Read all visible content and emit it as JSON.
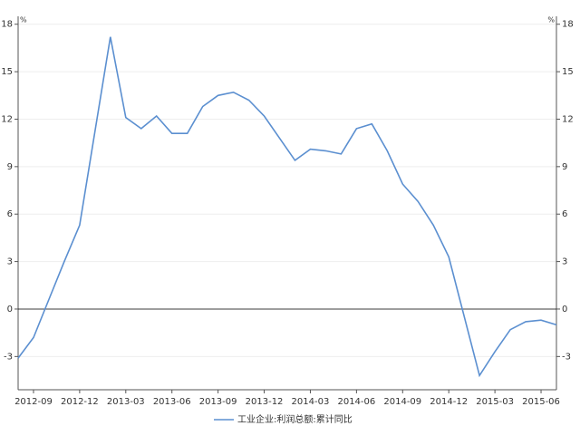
{
  "chart_data": {
    "type": "line",
    "x": [
      "2012-08",
      "2012-09",
      "2012-10",
      "2012-11",
      "2012-12",
      "2013-02",
      "2013-03",
      "2013-04",
      "2013-05",
      "2013-06",
      "2013-07",
      "2013-08",
      "2013-09",
      "2013-10",
      "2013-11",
      "2013-12",
      "2014-02",
      "2014-03",
      "2014-04",
      "2014-05",
      "2014-06",
      "2014-07",
      "2014-08",
      "2014-09",
      "2014-10",
      "2014-11",
      "2014-12",
      "2015-02",
      "2015-03",
      "2015-04",
      "2015-05",
      "2015-06",
      "2015-07"
    ],
    "series": [
      {
        "name": "工业企业:利润总额:累计同比",
        "color": "#5b8fd0",
        "values": [
          -3.1,
          -1.8,
          0.6,
          3.0,
          5.3,
          17.2,
          12.1,
          11.4,
          12.2,
          11.1,
          11.1,
          12.8,
          13.5,
          13.7,
          13.2,
          12.2,
          9.4,
          10.1,
          10.0,
          9.8,
          11.4,
          11.7,
          10.0,
          7.9,
          6.8,
          5.3,
          3.3,
          -4.2,
          -2.7,
          -1.3,
          -0.8,
          -0.7,
          -1.0
        ]
      }
    ],
    "xlim": [
      "2012-08",
      "2015-07"
    ],
    "xticks": [
      "2012-09",
      "2012-12",
      "2013-03",
      "2013-06",
      "2013-09",
      "2013-12",
      "2014-03",
      "2014-06",
      "2014-09",
      "2014-12",
      "2015-03",
      "2015-06"
    ],
    "ylim": [
      -5.1,
      18.5
    ],
    "yticks": [
      -3,
      0,
      3,
      6,
      9,
      12,
      15,
      18
    ],
    "y2lim": [
      -5.1,
      18.5
    ],
    "y2ticks": [
      -3,
      0,
      3,
      6,
      9,
      12,
      15,
      18
    ],
    "y_unit": "%",
    "y2_unit": "%",
    "grid": true,
    "legend": "bottom"
  }
}
